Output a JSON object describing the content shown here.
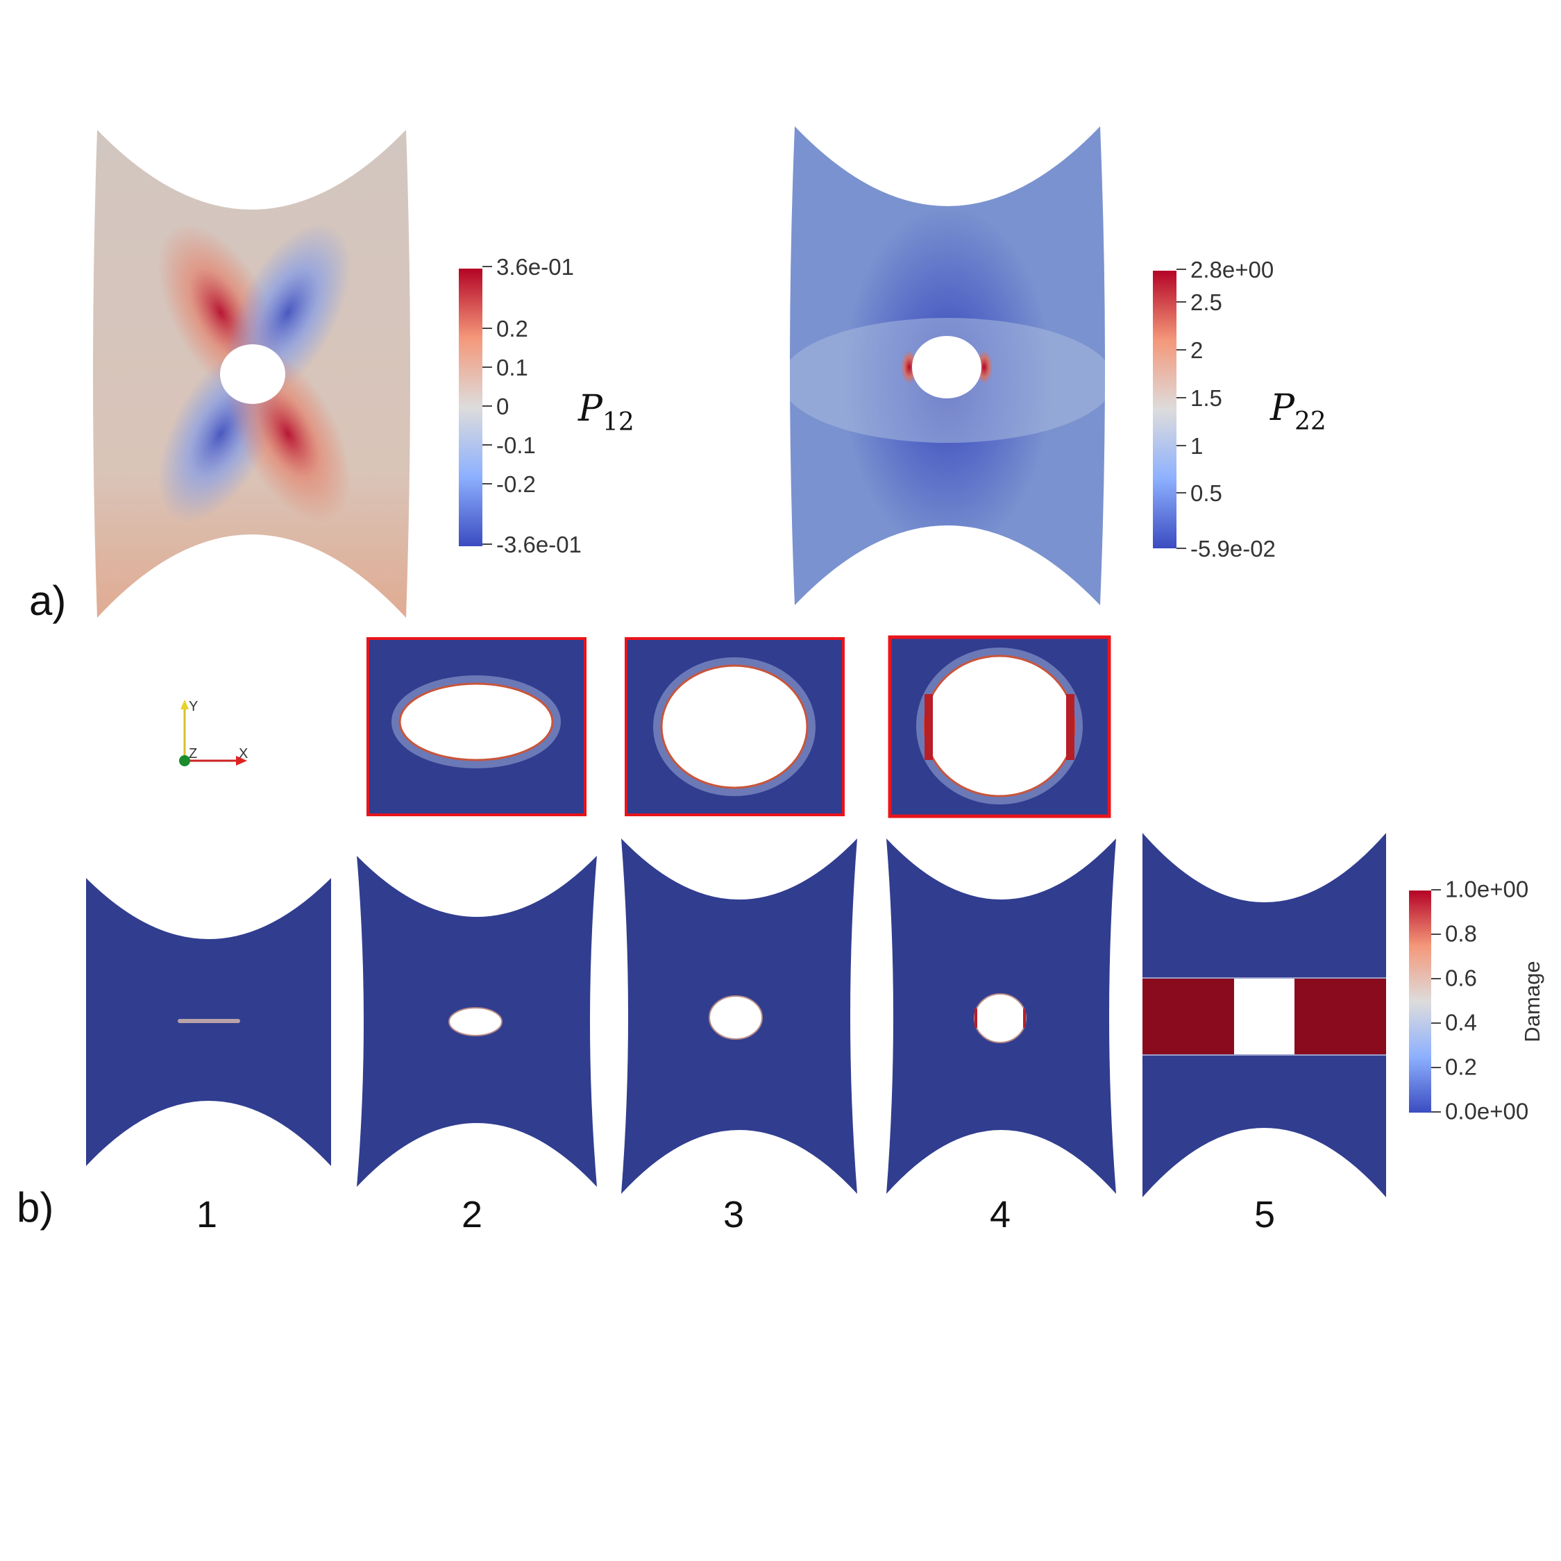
{
  "panel_a": {
    "label": "a)",
    "p12": {
      "symbol": "P",
      "subscript": "12",
      "colorbar_ticks": [
        "3.6e-01",
        "0.2",
        "0.1",
        "0",
        "-0.1",
        "-0.2",
        "-3.6e-01"
      ]
    },
    "p22": {
      "symbol": "P",
      "subscript": "22",
      "colorbar_ticks": [
        "2.8e+00",
        "2.5",
        "2",
        "1.5",
        "1",
        "0.5",
        "-5.9e-02"
      ]
    }
  },
  "panel_b": {
    "label": "b)",
    "frames": [
      "1",
      "2",
      "3",
      "4",
      "5"
    ],
    "colorbar": {
      "title": "Damage",
      "ticks": [
        "1.0e+00",
        "0.8",
        "0.6",
        "0.4",
        "0.2",
        "0.0e+00"
      ]
    },
    "axes": {
      "y": "Y",
      "z": "Z",
      "x": "X"
    }
  },
  "colors": {
    "specimen_blue": "#313d8f",
    "damage_red": "#8a0a1e",
    "zoom_frame": "#e8141b",
    "cool": "#3b4cc0",
    "neutral": "#dddcdc",
    "warm": "#b40426"
  }
}
